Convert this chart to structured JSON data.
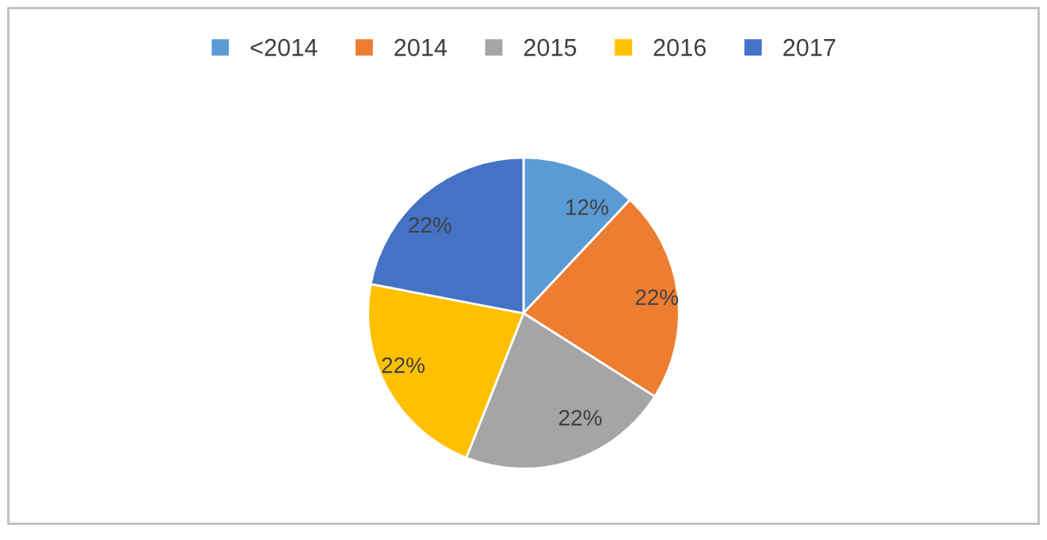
{
  "chart_data": {
    "type": "pie",
    "categories": [
      "<2014",
      "2014",
      "2015",
      "2016",
      "2017"
    ],
    "values": [
      12,
      22,
      22,
      22,
      22
    ],
    "colors": [
      "#5b9bd5",
      "#ed7d31",
      "#a5a5a5",
      "#ffc000",
      "#4472c4"
    ],
    "value_labels": [
      "12%",
      "22%",
      "22%",
      "22%",
      "22%"
    ],
    "legend": "top"
  }
}
